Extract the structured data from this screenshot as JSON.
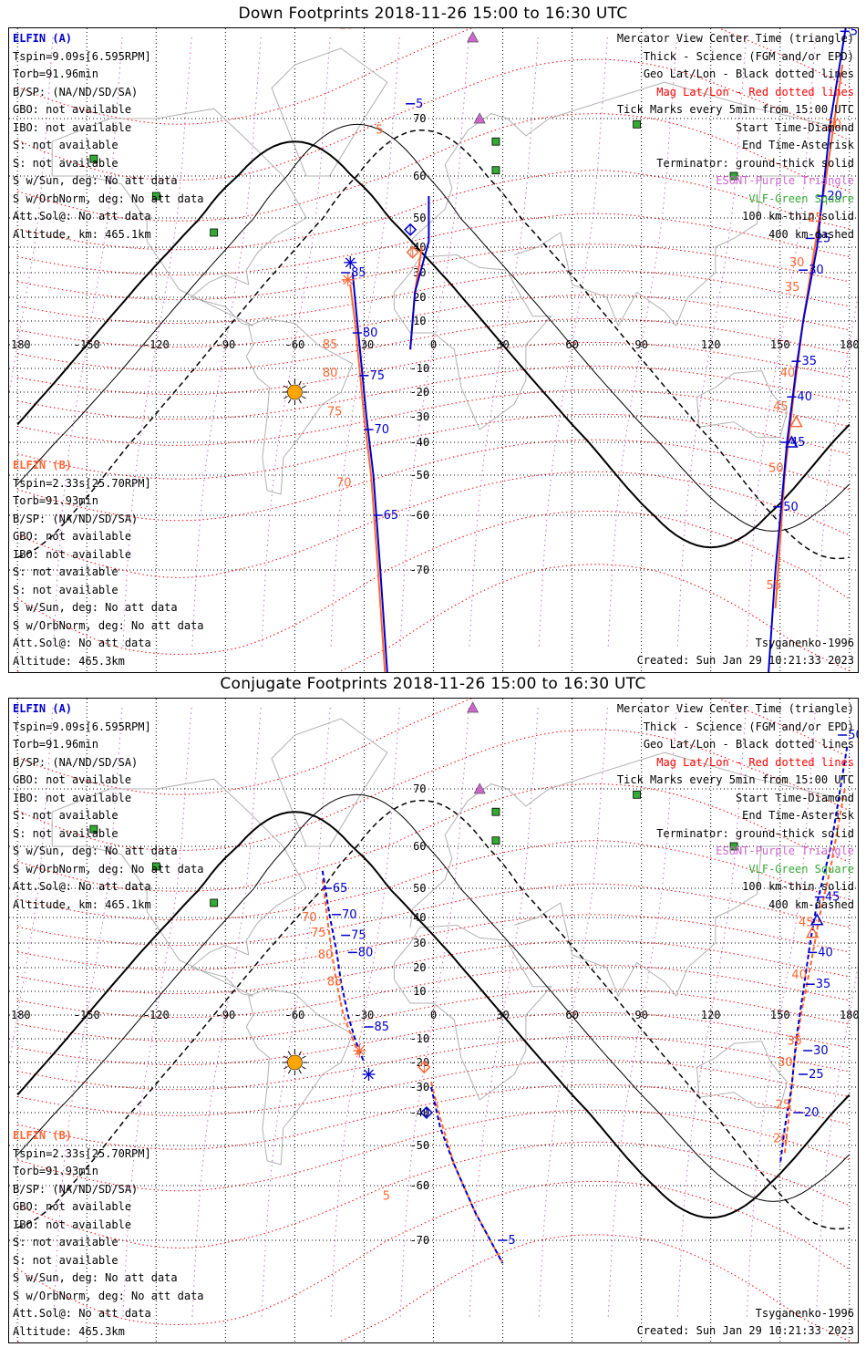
{
  "colors": {
    "elfin_a": "#0000cc",
    "elfin_b": "#ff6633",
    "geo_grid": "#000000",
    "mag_grid": "#ff0000",
    "esont": "#cc66cc",
    "vlf": "#33aa33",
    "coast": "#b0b0b0",
    "sun": "#ffa500"
  },
  "axis": {
    "lon_labels": [
      "-180",
      "-150",
      "-120",
      "-90",
      "-60",
      "-30",
      "0",
      "30",
      "60",
      "90",
      "120",
      "150",
      "180"
    ],
    "lat_labels": [
      "70",
      "60",
      "50",
      "40",
      "30",
      "20",
      "10",
      "-10",
      "-20",
      "-30",
      "-40",
      "-50",
      "-60",
      "-70"
    ]
  },
  "legend": {
    "view": "Mercator View Center Time (triangle)",
    "thick": "Thick - Science (FGM and/or EPD)",
    "geo": "Geo Lat/Lon - Black dotted lines",
    "mag": "Mag Lat/Lon - Red dotted lines",
    "ticks": "Tick Marks every 5min from 15:00 UTC",
    "start": "Start Time-Diamond",
    "end": "End Time-Asterisk",
    "terminator": "Terminator: ground-thick solid",
    "esont": "ESONT-Purple Triangle",
    "vlf": "VLF-Green Square",
    "km100": "100 km-thin solid",
    "km400": "400 km-dashed"
  },
  "sat_a": {
    "name": "ELFIN (A)",
    "tspin": "Tspin=9.09s[6.595RPM]",
    "torb": "Torb=91.96min",
    "bsp": "B/SP: (NA/ND/SD/SA)",
    "gbo": "GBO: not available",
    "ibo": "IBO: not available",
    "s1": "S: not available",
    "s2": "S: not available",
    "wsun": "S w/Sun, deg: No att data",
    "worb": "S w/OrbNorm, deg: No att data",
    "attsol": "Att.Sol@: No att data",
    "alt": "Altitude, km: 465.1km"
  },
  "sat_b": {
    "name": "ELFIN (B)",
    "tspin": "Tspin=2.33s[25.70RPM]",
    "torb": "Torb=91.93min",
    "bsp": "B/SP: (NA/ND/SD/SA)",
    "gbo": "GBO: not available",
    "ibo": "IBO: not available",
    "s1": "S: not available",
    "s2": "S: not available",
    "wsun": "S w/Sun, deg: No att data",
    "worb": "S w/OrbNorm, deg: No att data",
    "attsol": "Att.Sol@: No att data",
    "alt": "Altitude: 465.3km"
  },
  "model": "Tsyganenko-1996",
  "created": "Created: Sun Jan 29 10:21:33 2023",
  "panels": [
    {
      "title": "Down Footprints 2018-11-26 15:00 to 16:30 UTC",
      "track_a1": [
        [
          -2,
          55
        ],
        [
          -2,
          42
        ],
        [
          -8,
          22
        ],
        [
          -10,
          -2
        ]
      ],
      "track_b1": [
        [
          -5,
          40
        ],
        [
          -8,
          22
        ],
        [
          -10,
          -2
        ]
      ],
      "track_a2": [
        [
          -35,
          30
        ],
        [
          -33,
          10
        ],
        [
          -31,
          -10
        ],
        [
          -29,
          -30
        ],
        [
          -26,
          -50
        ],
        [
          -23,
          -70
        ],
        [
          -20,
          -84
        ]
      ],
      "track_b2": [
        [
          -36,
          25
        ],
        [
          -34,
          10
        ],
        [
          -32,
          -10
        ],
        [
          -30,
          -30
        ],
        [
          -27,
          -50
        ],
        [
          -24,
          -70
        ],
        [
          -21,
          -84
        ]
      ],
      "track_a3": [
        [
          179,
          88
        ],
        [
          172,
          70
        ],
        [
          166,
          40
        ],
        [
          160,
          10
        ],
        [
          157,
          -10
        ],
        [
          153,
          -40
        ],
        [
          148,
          -70
        ],
        [
          145,
          -84
        ]
      ],
      "track_b3": [
        [
          177,
          80
        ],
        [
          170,
          60
        ],
        [
          165,
          40
        ],
        [
          160,
          10
        ],
        [
          156,
          -20
        ],
        [
          152,
          -50
        ],
        [
          148,
          -75
        ]
      ],
      "labels_a": [
        [
          "5",
          -10,
          73
        ],
        [
          "85",
          -38,
          30
        ],
        [
          "80",
          -33,
          5
        ],
        [
          "75",
          -30,
          -13
        ],
        [
          "70",
          -28,
          -35
        ],
        [
          "65",
          -24,
          -60
        ],
        [
          "55",
          146,
          -86
        ],
        [
          "5",
          178,
          86
        ],
        [
          "20",
          168,
          55
        ],
        [
          "25",
          163,
          43
        ],
        [
          "30",
          160,
          31
        ],
        [
          "35",
          157,
          -7
        ],
        [
          "40",
          155,
          -22
        ],
        [
          "45",
          152,
          -40
        ],
        [
          "50",
          149,
          -58
        ]
      ],
      "labels_b": [
        [
          "10",
          -41,
          87
        ],
        [
          "5",
          -25,
          68
        ],
        [
          "85",
          -48,
          0
        ],
        [
          "80",
          -48,
          -12
        ],
        [
          "75",
          -46,
          -28
        ],
        [
          "70",
          -42,
          -52
        ],
        [
          "65",
          -34,
          -85
        ],
        [
          "20",
          170,
          69
        ],
        [
          "25",
          162,
          50
        ],
        [
          "30",
          154,
          34
        ],
        [
          "35",
          152,
          24
        ],
        [
          "40",
          150,
          -12
        ],
        [
          "45",
          147,
          -26
        ],
        [
          "50",
          145,
          -48
        ],
        [
          "55",
          144,
          -72
        ]
      ],
      "start_a": [
        -10,
        46
      ],
      "start_b": [
        -9,
        38
      ],
      "end_a": [
        -36,
        34
      ],
      "end_b": [
        -37,
        27
      ],
      "vc_a": [
        155,
        -40
      ],
      "vc_b": [
        157,
        -32
      ]
    },
    {
      "title": "Conjugate Footprints 2018-11-26 15:00 to 16:30 UTC",
      "track_a1": [
        [
          -48,
          54
        ],
        [
          -45,
          41
        ],
        [
          -42,
          27
        ],
        [
          -40,
          14
        ],
        [
          -37,
          0
        ],
        [
          -34,
          -10
        ],
        [
          -30,
          -20
        ]
      ],
      "track_b1": [
        [
          -48,
          52
        ],
        [
          -46,
          40
        ],
        [
          -44,
          26
        ],
        [
          -42,
          14
        ],
        [
          -39,
          0
        ],
        [
          -35,
          -10
        ],
        [
          -32,
          -18
        ]
      ],
      "track_a2": [
        [
          -1,
          -30
        ],
        [
          3,
          -45
        ],
        [
          9,
          -55
        ],
        [
          18,
          -65
        ],
        [
          30,
          -73
        ]
      ],
      "track_b2": [
        [
          -1,
          -28
        ],
        [
          3,
          -42
        ],
        [
          9,
          -55
        ],
        [
          18,
          -65
        ],
        [
          30,
          -73
        ]
      ],
      "track_a3": [
        [
          179,
          78
        ],
        [
          172,
          60
        ],
        [
          166,
          45
        ],
        [
          163,
          30
        ],
        [
          160,
          10
        ],
        [
          157,
          -10
        ],
        [
          155,
          -30
        ],
        [
          152,
          -45
        ],
        [
          150,
          -55
        ]
      ],
      "track_b3": [
        [
          178,
          70
        ],
        [
          172,
          55
        ],
        [
          167,
          40
        ],
        [
          163,
          20
        ],
        [
          159,
          0
        ],
        [
          156,
          -20
        ],
        [
          154,
          -40
        ],
        [
          152,
          -52
        ]
      ],
      "labels_a": [
        [
          "65",
          -46,
          50
        ],
        [
          "70",
          -42,
          41
        ],
        [
          "75",
          -38,
          33
        ],
        [
          "80",
          -35,
          26
        ],
        [
          "85",
          -28,
          -5
        ],
        [
          "5",
          30,
          -70
        ],
        [
          "30",
          162,
          -15
        ],
        [
          "25",
          160,
          -25
        ],
        [
          "20",
          158,
          -40
        ],
        [
          "35",
          163,
          13
        ],
        [
          "40",
          164,
          26
        ],
        [
          "45",
          167,
          47
        ],
        [
          "50",
          177,
          80
        ]
      ],
      "labels_b": [
        [
          "70",
          -57,
          40
        ],
        [
          "75",
          -53,
          34
        ],
        [
          "80",
          -50,
          25
        ],
        [
          "85",
          -46,
          14
        ],
        [
          "5",
          -22,
          -62
        ],
        [
          "45",
          158,
          38
        ],
        [
          "40",
          155,
          17
        ],
        [
          "35",
          153,
          -11
        ],
        [
          "30",
          149,
          -20
        ],
        [
          "25",
          148,
          -37
        ],
        [
          "20",
          147,
          -48
        ]
      ],
      "start_a": [
        -3,
        -40
      ],
      "start_b": [
        -4,
        -22
      ],
      "end_a": [
        -28,
        -25
      ],
      "end_b": [
        -32,
        -15
      ],
      "vc_a": [
        166,
        39
      ],
      "vc_b": [
        164,
        34
      ]
    }
  ]
}
